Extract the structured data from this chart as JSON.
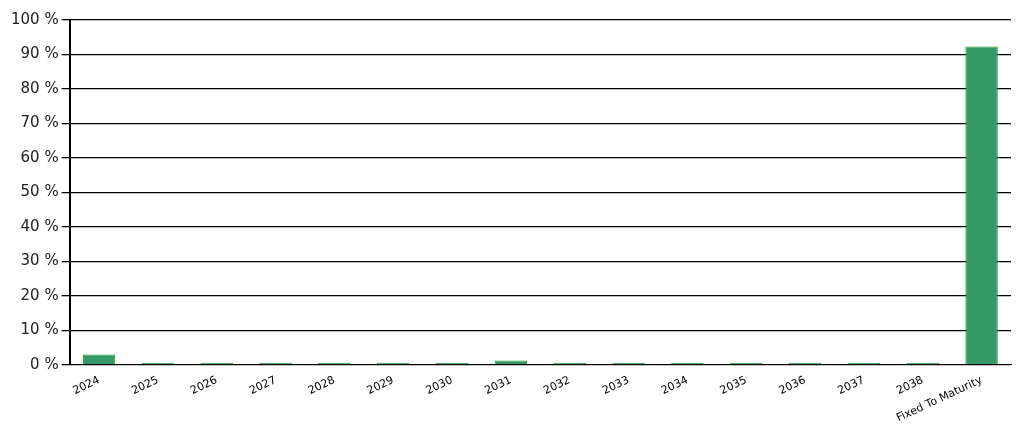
{
  "chart_data": {
    "type": "bar",
    "categories": [
      "2024",
      "2025",
      "2026",
      "2027",
      "2028",
      "2029",
      "2030",
      "2031",
      "2032",
      "2033",
      "2034",
      "2035",
      "2036",
      "2037",
      "2038",
      "Fixed To Maturity"
    ],
    "values": [
      3,
      0.5,
      0.5,
      0.5,
      0.5,
      0.5,
      0.1,
      1.2,
      0.5,
      0.1,
      0.5,
      0.1,
      0.1,
      0.1,
      0.1,
      92.3
    ],
    "color": "#339966",
    "ylim": [
      0,
      100
    ],
    "yticks": [
      {
        "value": 0,
        "label": "0 %"
      },
      {
        "value": 10,
        "label": "10 %"
      },
      {
        "value": 20,
        "label": "20 %"
      },
      {
        "value": 30,
        "label": "30 %"
      },
      {
        "value": 40,
        "label": "40 %"
      },
      {
        "value": 50,
        "label": "50 %"
      },
      {
        "value": 60,
        "label": "60 %"
      },
      {
        "value": 70,
        "label": "70 %"
      },
      {
        "value": 80,
        "label": "80 %"
      },
      {
        "value": 90,
        "label": "90 %"
      },
      {
        "value": 100,
        "label": "100 %"
      }
    ],
    "grid": "y",
    "legend": false
  }
}
